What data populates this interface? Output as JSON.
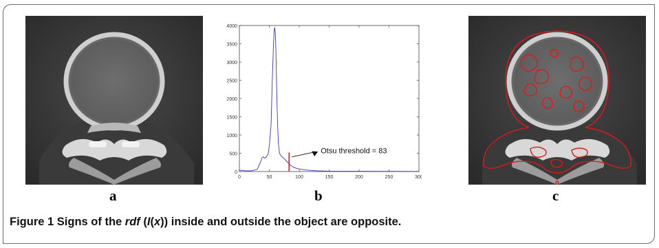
{
  "panels": {
    "a": {
      "label": "a"
    },
    "b": {
      "label": "b"
    },
    "c": {
      "label": "c"
    }
  },
  "chart_data": {
    "type": "line",
    "title": "",
    "xlabel": "",
    "ylabel": "",
    "xlim": [
      0,
      300
    ],
    "ylim": [
      0,
      4000
    ],
    "xticks": [
      0,
      50,
      100,
      150,
      200,
      250,
      300
    ],
    "yticks": [
      0,
      500,
      1000,
      1500,
      2000,
      2500,
      3000,
      3500,
      4000
    ],
    "series": [
      {
        "color": "#3333cc",
        "x": [
          0,
          5,
          10,
          20,
          30,
          35,
          38,
          40,
          42,
          45,
          48,
          50,
          53,
          55,
          57,
          58,
          59,
          60,
          61,
          62,
          63,
          64,
          65,
          67,
          70,
          75,
          80,
          85,
          90,
          95,
          100,
          110,
          120,
          130,
          150,
          200,
          250,
          300
        ],
        "y": [
          40,
          30,
          20,
          20,
          60,
          250,
          380,
          400,
          370,
          400,
          480,
          700,
          1300,
          2500,
          3500,
          3850,
          3950,
          3800,
          3300,
          2600,
          1800,
          1200,
          800,
          500,
          420,
          350,
          260,
          180,
          120,
          90,
          70,
          45,
          30,
          20,
          12,
          8,
          5,
          3
        ]
      }
    ],
    "threshold": {
      "x": 83,
      "color": "#e02020"
    },
    "annotation": {
      "text": "Otsu threshold = 83"
    }
  },
  "caption": {
    "figure_number": "Figure 1",
    "text_before": "Signs of the ",
    "rdf": "rdf",
    "text_open": " (",
    "I": "I",
    "paren_open": "(",
    "x": "x",
    "text_after": ")) inside and outside the object are opposite."
  }
}
